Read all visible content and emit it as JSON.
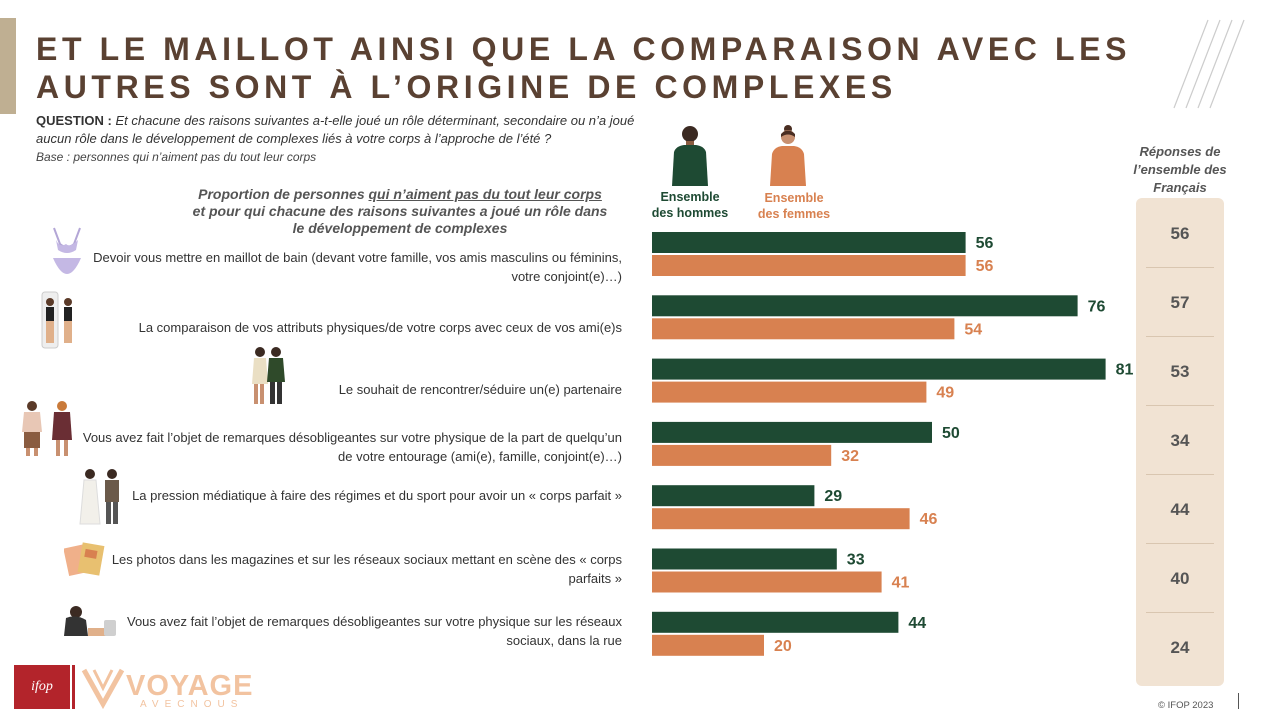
{
  "header": {
    "title_line1": "ET LE MAILLOT AINSI QUE LA COMPARAISON AVEC LES",
    "title_line2": "AUTRES SONT À L’ORIGINE DE COMPLEXES",
    "question_label": "QUESTION :",
    "question_text": "Et chacune des raisons suivantes a-t-elle joué un rôle déterminant, secondaire ou n’a joué aucun rôle dans le développement de complexes liés à votre corps à l’approche de l’été ?",
    "base": "Base : personnes qui n’aiment pas du tout leur corps"
  },
  "chart_subtitle": {
    "part1": "Proportion de personnes ",
    "underlined": "qui n’aiment pas du tout leur corps",
    "part2": " et pour qui chacune des raisons suivantes a joué un rôle dans le développement de complexes"
  },
  "legend": {
    "men_line1": "Ensemble",
    "men_line2": "des hommes",
    "women_line1": "Ensemble",
    "women_line2": "des femmes"
  },
  "colors": {
    "men": "#1e4a33",
    "women": "#d88150",
    "panel": "#f1e3d3",
    "title": "#5a4132"
  },
  "icons": [
    "swimsuit-icon",
    "mirror-comparison-icon",
    "couple-icon",
    "gossip-icon",
    "media-pressure-icon",
    "magazines-icon",
    "sad-person-icon"
  ],
  "chart_data": {
    "type": "bar",
    "orientation": "horizontal",
    "categories": [
      "Devoir vous mettre en maillot de bain (devant votre famille, vos amis masculins ou féminins, votre conjoint(e)…)",
      "La comparaison de vos attributs physiques/de votre corps avec ceux de vos ami(e)s",
      "Le souhait de rencontrer/séduire un(e) partenaire",
      "Vous avez fait l’objet de remarques désobligeantes sur votre physique de la part de quelqu’un de votre entourage (ami(e), famille, conjoint(e)…)",
      "La pression médiatique à faire des régimes et du sport pour avoir un « corps parfait »",
      "Les photos dans les magazines et sur les réseaux sociaux mettant en scène des « corps parfaits »",
      "Vous avez fait l’objet de remarques désobligeantes sur votre physique sur les réseaux sociaux, dans la rue"
    ],
    "series": [
      {
        "name": "Ensemble des hommes",
        "values": [
          56,
          76,
          81,
          50,
          29,
          33,
          44
        ]
      },
      {
        "name": "Ensemble des femmes",
        "values": [
          56,
          54,
          49,
          32,
          46,
          41,
          20
        ]
      }
    ],
    "xlim": [
      0,
      100
    ],
    "grid": false,
    "legend": "top"
  },
  "french_total": {
    "header": "Réponses de l’ensemble des Français",
    "values": [
      56,
      57,
      53,
      34,
      44,
      40,
      24
    ]
  },
  "footer": {
    "ifop_logo": "ifop",
    "brand_name": "VOYAGE",
    "brand_sub": "AVECNOUS",
    "copyright": "© IFOP 2023"
  }
}
